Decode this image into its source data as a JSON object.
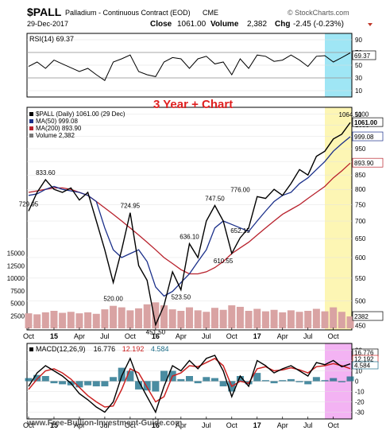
{
  "header": {
    "symbol": "$PALL",
    "description": "Palladium - Continuous Contract (EOD)",
    "exchange": "CME",
    "brand": "© StockCharts.com",
    "date": "29-Dec-2017",
    "close_label": "Close",
    "close_value": "1061.00",
    "volume_label": "Volume",
    "volume_value": "2,382",
    "chg_label": "Chg",
    "chg_value": "-2.45 (-0.23%)"
  },
  "annotation": "3 Year + Chart",
  "watermark": "www.Free-Bullion-Investment-Guide.com",
  "colors": {
    "price": "#000000",
    "ma50": "#1a2f8a",
    "ma200": "#b8212c",
    "volume": "#d9a3a3",
    "highlight_price": "#fdf6b4",
    "highlight_rsi": "#9fe6f5",
    "highlight_macd": "#f3b3f3",
    "macd_line": "#000000",
    "macd_signal": "#cc2222",
    "macd_hist": "#1d6f8a",
    "rsi_overbought_fill": "#3f8f3f",
    "title_red": "#e02020"
  },
  "chart_data": [
    {
      "type": "line",
      "panel": "rsi",
      "legend": "RSI(14) 69.37",
      "ylim": [
        0,
        100
      ],
      "yticks": [
        10,
        30,
        50,
        70,
        90
      ],
      "reference_lines": [
        30,
        70
      ],
      "last_value": "69.37",
      "series": [
        {
          "name": "RSI(14)",
          "x": [
            "2014-10",
            "2014-11",
            "2014-12",
            "2015-01",
            "2015-02",
            "2015-03",
            "2015-04",
            "2015-05",
            "2015-06",
            "2015-07",
            "2015-08",
            "2015-09",
            "2015-10",
            "2015-11",
            "2015-12",
            "2016-01",
            "2016-02",
            "2016-03",
            "2016-04",
            "2016-05",
            "2016-06",
            "2016-07",
            "2016-08",
            "2016-09",
            "2016-10",
            "2016-11",
            "2016-12",
            "2017-01",
            "2017-02",
            "2017-03",
            "2017-04",
            "2017-05",
            "2017-06",
            "2017-07",
            "2017-08",
            "2017-09",
            "2017-10",
            "2017-11",
            "2017-12"
          ],
          "values": [
            48,
            55,
            45,
            58,
            52,
            46,
            40,
            45,
            35,
            26,
            55,
            60,
            66,
            40,
            35,
            32,
            55,
            62,
            60,
            45,
            60,
            64,
            52,
            55,
            35,
            60,
            45,
            66,
            64,
            56,
            58,
            66,
            58,
            48,
            64,
            65,
            55,
            62,
            69.37
          ]
        }
      ]
    },
    {
      "type": "line",
      "panel": "price",
      "legend": [
        "$PALL (Daily) 1061.00 (29 Dec)",
        "MA(50) 999.08",
        "MA(200) 893.90",
        "Volume 2,382"
      ],
      "y_scale": "log",
      "ylim": [
        445,
        1120
      ],
      "yticks": [
        450,
        500,
        550,
        600,
        650,
        700,
        750,
        800,
        850,
        900,
        950,
        1000,
        1050,
        1100
      ],
      "volume_ticks": [
        "2500",
        "5000",
        "7500",
        "10000",
        "12500",
        "15000"
      ],
      "xticks": [
        "Oct",
        "15",
        "Apr",
        "Jul",
        "Oct",
        "16",
        "Apr",
        "Jul",
        "Oct",
        "17",
        "Apr",
        "Jul",
        "Oct"
      ],
      "price_labels": [
        {
          "text": "729.95",
          "value": 729.95,
          "date": "2014-10"
        },
        {
          "text": "833.60",
          "value": 833.6,
          "date": "2014-12"
        },
        {
          "text": "724.95",
          "value": 724.95,
          "date": "2015-10"
        },
        {
          "text": "520.00",
          "value": 520.0,
          "date": "2015-08"
        },
        {
          "text": "451.50",
          "value": 451.5,
          "date": "2016-01"
        },
        {
          "text": "523.50",
          "value": 523.5,
          "date": "2016-04"
        },
        {
          "text": "636.10",
          "value": 636.1,
          "date": "2016-05"
        },
        {
          "text": "747.50",
          "value": 747.5,
          "date": "2016-08"
        },
        {
          "text": "610.55",
          "value": 610.55,
          "date": "2016-09"
        },
        {
          "text": "652.15",
          "value": 652.15,
          "date": "2016-11"
        },
        {
          "text": "776.00",
          "value": 776.0,
          "date": "2016-11"
        },
        {
          "text": "1064.50",
          "value": 1064.5,
          "date": "2017-12"
        }
      ],
      "right_tags": [
        {
          "text": "1061.00",
          "value": 1061.0
        },
        {
          "text": "999.08",
          "value": 999.08
        },
        {
          "text": "893.90",
          "value": 893.9
        },
        {
          "text": "2382",
          "value": 2382
        }
      ],
      "series": [
        {
          "name": "$PALL",
          "x": [
            "2014-10",
            "2014-11",
            "2014-12",
            "2015-01",
            "2015-02",
            "2015-03",
            "2015-04",
            "2015-05",
            "2015-06",
            "2015-07",
            "2015-08",
            "2015-09",
            "2015-10",
            "2015-11",
            "2015-12",
            "2016-01",
            "2016-02",
            "2016-03",
            "2016-04",
            "2016-05",
            "2016-06",
            "2016-07",
            "2016-08",
            "2016-09",
            "2016-10",
            "2016-11",
            "2016-12",
            "2017-01",
            "2017-02",
            "2017-03",
            "2017-04",
            "2017-05",
            "2017-06",
            "2017-07",
            "2017-08",
            "2017-09",
            "2017-10",
            "2017-11",
            "2017-12"
          ],
          "values": [
            729.95,
            790,
            833.6,
            800,
            790,
            805,
            765,
            790,
            700,
            620,
            540,
            620,
            724.95,
            580,
            545,
            451.5,
            490,
            565,
            523.5,
            636.1,
            600,
            700,
            747.5,
            700,
            610.55,
            652.15,
            680,
            776,
            770,
            800,
            780,
            820,
            870,
            850,
            920,
            940,
            990,
            1010,
            1061
          ]
        },
        {
          "name": "MA(50)",
          "values": [
            780,
            785,
            800,
            810,
            800,
            795,
            790,
            780,
            760,
            680,
            620,
            600,
            610,
            620,
            590,
            530,
            510,
            520,
            540,
            560,
            590,
            620,
            680,
            700,
            690,
            680,
            670,
            700,
            730,
            760,
            780,
            790,
            820,
            840,
            870,
            900,
            940,
            970,
            999.08
          ]
        },
        {
          "name": "MA(200)",
          "values": [
            790,
            795,
            800,
            805,
            805,
            800,
            790,
            780,
            760,
            740,
            720,
            700,
            680,
            660,
            640,
            620,
            600,
            585,
            570,
            560,
            560,
            565,
            575,
            590,
            610,
            625,
            640,
            660,
            680,
            700,
            720,
            735,
            750,
            770,
            790,
            810,
            840,
            865,
            893.9
          ]
        },
        {
          "name": "Volume",
          "values": [
            3000,
            2800,
            3200,
            3500,
            3100,
            3300,
            3000,
            3200,
            2900,
            3800,
            4500,
            4200,
            3600,
            4000,
            4800,
            5200,
            4600,
            3800,
            3500,
            4200,
            3600,
            3300,
            4100,
            3700,
            4600,
            4300,
            3500,
            3900,
            3400,
            3700,
            3200,
            3600,
            3300,
            3500,
            3900,
            3400,
            4200,
            3300,
            2382
          ]
        }
      ]
    },
    {
      "type": "line",
      "panel": "macd",
      "legend": [
        "MACD(12,26,9)",
        "16.776",
        "12.192",
        "4.584"
      ],
      "ylim": [
        -35,
        35
      ],
      "yticks": [
        -30,
        -20,
        -10,
        0,
        10,
        20,
        30
      ],
      "right_tags": [
        "16.776",
        "12.192",
        "4.584"
      ],
      "xticks": [
        "Oct",
        "15",
        "Apr",
        "Jul",
        "Oct",
        "16",
        "Apr",
        "Jul",
        "Oct",
        "17",
        "Apr",
        "Jul",
        "Oct"
      ],
      "series": [
        {
          "name": "MACD",
          "values": [
            -5,
            8,
            15,
            10,
            5,
            -2,
            -12,
            -18,
            -25,
            -30,
            -20,
            5,
            22,
            0,
            -15,
            -30,
            -5,
            15,
            10,
            20,
            12,
            22,
            25,
            10,
            -15,
            5,
            -5,
            20,
            15,
            8,
            12,
            15,
            10,
            5,
            18,
            16,
            20,
            14,
            16.776
          ]
        },
        {
          "name": "Signal",
          "values": [
            -8,
            2,
            10,
            12,
            8,
            2,
            -6,
            -14,
            -20,
            -25,
            -24,
            -8,
            12,
            8,
            -6,
            -20,
            -15,
            5,
            8,
            15,
            14,
            18,
            22,
            15,
            -5,
            0,
            -2,
            12,
            14,
            10,
            11,
            13,
            11,
            8,
            14,
            15,
            17,
            15,
            12.192
          ]
        },
        {
          "name": "Histogram",
          "values": [
            3,
            6,
            5,
            -2,
            -3,
            -4,
            -6,
            -4,
            -5,
            -5,
            4,
            13,
            10,
            -8,
            -9,
            -10,
            10,
            10,
            2,
            5,
            -2,
            4,
            3,
            -5,
            -10,
            5,
            -3,
            8,
            1,
            -2,
            1,
            2,
            -1,
            -3,
            4,
            1,
            3,
            -1,
            4.584
          ]
        }
      ]
    }
  ]
}
